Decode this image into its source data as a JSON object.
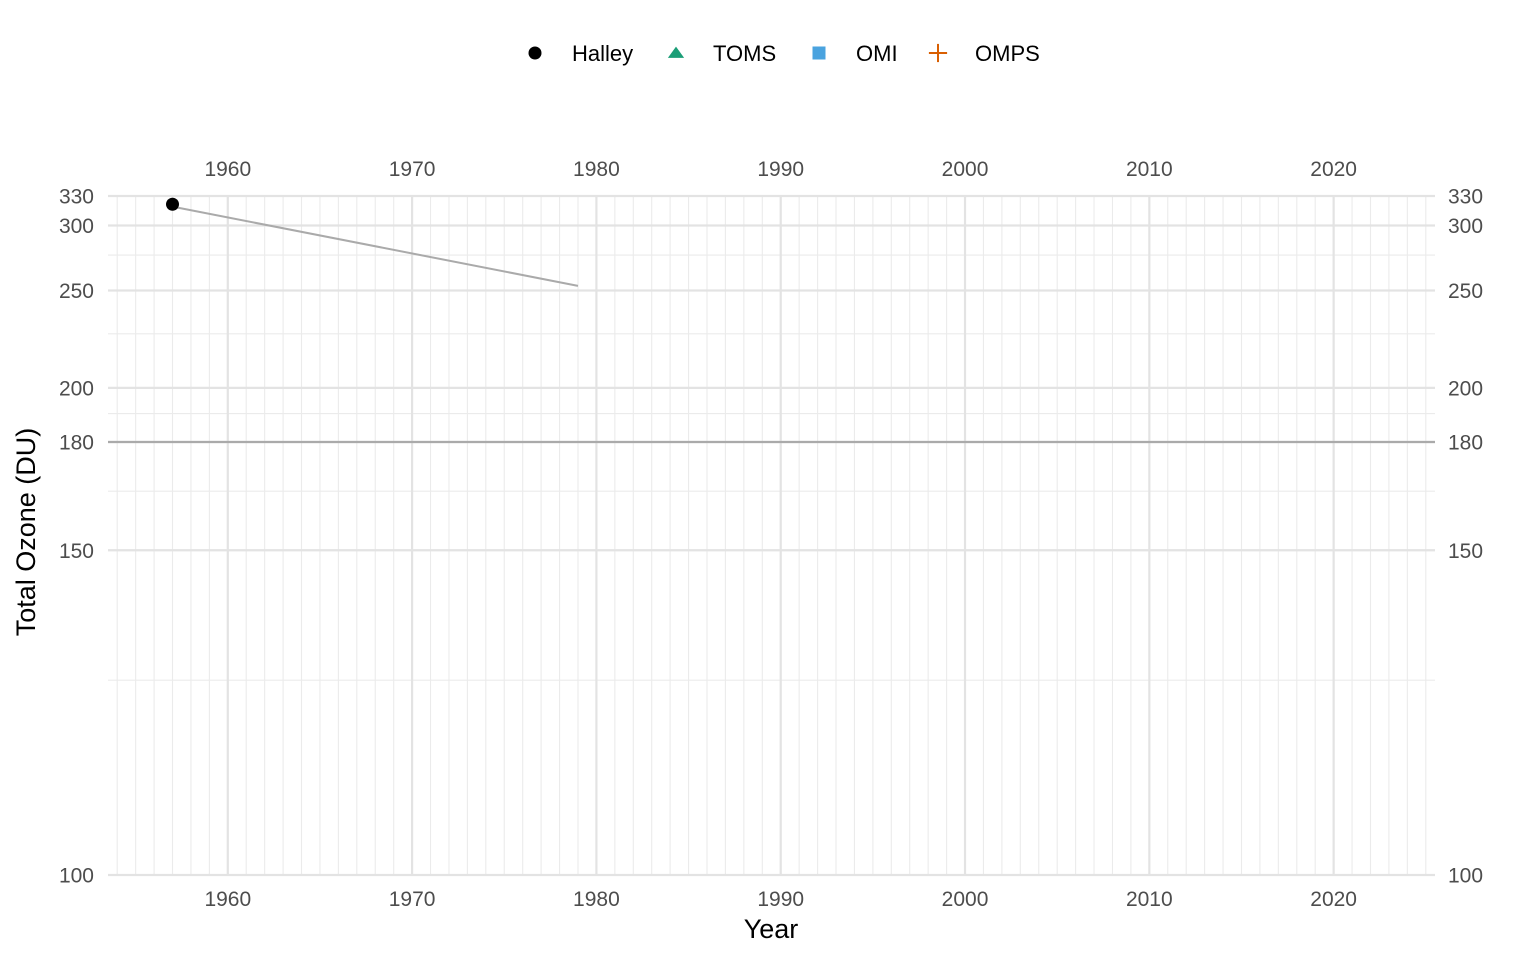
{
  "chart_data": {
    "type": "line",
    "title": "",
    "xlabel": "Year",
    "ylabel": "Total Ozone (DU)",
    "xlim": [
      1953.5,
      2025.5
    ],
    "ylim": [
      100,
      330
    ],
    "x_ticks": [
      1960,
      1970,
      1980,
      1990,
      2000,
      2010,
      2020
    ],
    "x_tick_labels": [
      "1960",
      "1970",
      "1980",
      "1990",
      "2000",
      "2010",
      "2020"
    ],
    "y_ticks": [
      100,
      150,
      180,
      200,
      250,
      300,
      330
    ],
    "y_tick_labels": [
      "100",
      "150",
      "180",
      "200",
      "250",
      "300",
      "330"
    ],
    "x_minor_step": 1,
    "y_minor_ticks": [
      125,
      165,
      190,
      225,
      275
    ],
    "grid": true,
    "legend_position": "top",
    "secondary_x_axis": "top",
    "secondary_y_axis": "right",
    "legend": [
      {
        "name": "Halley",
        "shape": "circle",
        "color": "#000000"
      },
      {
        "name": "TOMS",
        "shape": "triangle",
        "color": "#1b9e77"
      },
      {
        "name": "OMI",
        "shape": "square",
        "color": "#4aa3df"
      },
      {
        "name": "OMPS",
        "shape": "plus",
        "color": "#d95f02"
      }
    ],
    "series": [
      {
        "name": "Halley",
        "shape": "circle",
        "color": "#000000",
        "points": [
          {
            "x": 1957,
            "y": 321
          }
        ]
      },
      {
        "name": "TOMS",
        "shape": "triangle",
        "color": "#1b9e77",
        "points": []
      },
      {
        "name": "OMI",
        "shape": "square",
        "color": "#4aa3df",
        "points": []
      },
      {
        "name": "OMPS",
        "shape": "plus",
        "color": "#d95f02",
        "points": []
      }
    ],
    "trend_line": {
      "color": "#aaaaaa",
      "points": [
        {
          "x": 1957,
          "y": 318.5
        },
        {
          "x": 1979,
          "y": 253
        }
      ]
    },
    "reference_line": {
      "y": 180,
      "color": "#aaaaaa"
    }
  }
}
